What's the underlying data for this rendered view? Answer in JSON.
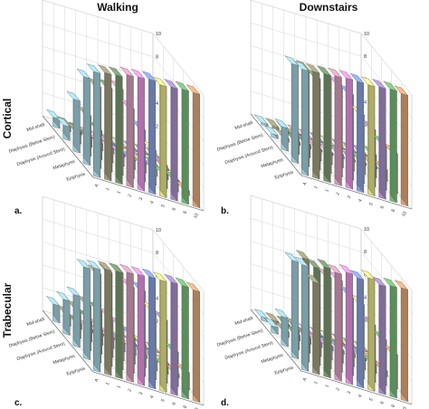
{
  "figure": {
    "col_titles": [
      "Walking",
      "Downstairs"
    ],
    "row_titles": [
      "Cortical",
      "Trabecular"
    ]
  },
  "chart_data": [
    {
      "type": "bar3d",
      "panel_label": "a.",
      "rows": [
        "Epiphysis",
        "Metaphysis",
        "Diaphysis (Around Stem)",
        "Diaphysis (Below Stem)",
        "Mid-shaft"
      ],
      "x_ticks": [
        "A",
        "1",
        "1",
        "2",
        "3",
        "4",
        "5",
        "6",
        "8",
        "10"
      ],
      "z_ticks": [
        "2",
        "4",
        "6",
        "8",
        "10"
      ],
      "zlim": [
        0,
        10
      ],
      "colors": [
        "#a8dce8",
        "#a9a682",
        "#7fa272",
        "#e4a6c6",
        "#f39df0",
        "#8fa9ec",
        "#f2f08a",
        "#b296d3",
        "#7bc77d",
        "#f0b07c"
      ],
      "values": [
        [
          9.0,
          9.2,
          9.3,
          9.6,
          9.7,
          9.8,
          9.6,
          9.7,
          9.8,
          9.8
        ],
        [
          7.5,
          7.0,
          7.2,
          7.4,
          6.0,
          4.5,
          3.0,
          2.0,
          1.0,
          0.4
        ],
        [
          4.5,
          3.5,
          2.5,
          1.5,
          1.0,
          0.8,
          0.8,
          0.6,
          0.4,
          0.2
        ],
        [
          1.2,
          1.0,
          0.8,
          0.6,
          0.5,
          0.3,
          0.3,
          0.2,
          0.1,
          0.1
        ],
        [
          0.8,
          0.5,
          0.3,
          0.2,
          0.1,
          0.1,
          0.1,
          0.1,
          0.1,
          0.1
        ]
      ]
    },
    {
      "type": "bar3d",
      "panel_label": "b.",
      "rows": [
        "Epiphysis",
        "Metaphysis",
        "Diaphysis (Around Stem)",
        "Diaphysis (Below Stem)",
        "Mid-shaft"
      ],
      "x_ticks": [
        "A",
        "1",
        "1",
        "2",
        "3",
        "4",
        "5",
        "6",
        "8",
        "10"
      ],
      "z_ticks": [
        "2",
        "4",
        "6",
        "8",
        "10"
      ],
      "zlim": [
        0,
        10
      ],
      "colors": [
        "#a8dce8",
        "#a9a682",
        "#7fa272",
        "#e4a6c6",
        "#f39df0",
        "#8fa9ec",
        "#f2f08a",
        "#b296d3",
        "#7bc77d",
        "#f0b07c"
      ],
      "values": [
        [
          9.2,
          9.3,
          9.4,
          9.5,
          9.6,
          9.6,
          9.6,
          9.7,
          9.8,
          9.7
        ],
        [
          8.6,
          8.5,
          8.0,
          8.5,
          8.0,
          7.5,
          6.0,
          5.0,
          4.0,
          3.5
        ],
        [
          2.0,
          1.5,
          1.2,
          1.0,
          1.0,
          1.2,
          1.5,
          1.8,
          2.0,
          1.0
        ],
        [
          0.3,
          0.3,
          0.3,
          0.3,
          0.2,
          0.2,
          0.2,
          0.2,
          0.2,
          0.2
        ],
        [
          0.2,
          0.2,
          0.2,
          0.2,
          0.1,
          0.1,
          0.1,
          0.1,
          0.1,
          0.1
        ]
      ]
    },
    {
      "type": "bar3d",
      "panel_label": "c.",
      "rows": [
        "Epiphysis",
        "Metaphysis",
        "Diaphysis (Around Stem)",
        "Diaphysis (Below Stem)",
        "Mid-shaft"
      ],
      "x_ticks": [
        "A",
        "1",
        "1",
        "2",
        "3",
        "4",
        "5",
        "6",
        "8",
        "10"
      ],
      "z_ticks": [
        "2",
        "4",
        "6",
        "8",
        "10"
      ],
      "zlim": [
        0,
        10
      ],
      "colors": [
        "#a8dce8",
        "#a9a682",
        "#7fa272",
        "#e4a6c6",
        "#f39df0",
        "#8fa9ec",
        "#f2f08a",
        "#b296d3",
        "#7bc77d",
        "#f0b07c"
      ],
      "values": [
        [
          9.0,
          9.2,
          9.3,
          9.5,
          9.6,
          9.7,
          9.7,
          9.8,
          9.8,
          9.7
        ],
        [
          8.0,
          7.8,
          8.2,
          8.5,
          7.5,
          7.5,
          6.0,
          5.5,
          3.0,
          1.5
        ],
        [
          4.5,
          4.0,
          3.8,
          3.5,
          3.0,
          2.5,
          2.0,
          1.0,
          0.6,
          0.3
        ],
        [
          3.0,
          2.5,
          2.0,
          1.5,
          1.0,
          0.8,
          0.5,
          0.3,
          0.2,
          0.1
        ],
        [
          1.5,
          1.0,
          0.5,
          0.3,
          0.2,
          0.1,
          0.1,
          0.1,
          0.1,
          0.1
        ]
      ]
    },
    {
      "type": "bar3d",
      "panel_label": "d.",
      "rows": [
        "Epiphysis",
        "Metaphysis",
        "Diaphysis (Around Stem)",
        "Diaphysis (Below Stem)",
        "Mid-shaft"
      ],
      "x_ticks": [
        "A",
        "1",
        "1",
        "2",
        "3",
        "4",
        "5",
        "6",
        "8",
        "10"
      ],
      "z_ticks": [
        "2",
        "4",
        "6",
        "8",
        "10"
      ],
      "zlim": [
        0,
        10
      ],
      "colors": [
        "#a8dce8",
        "#a9a682",
        "#7fa272",
        "#e4a6c6",
        "#f39df0",
        "#8fa9ec",
        "#f2f08a",
        "#b296d3",
        "#7bc77d",
        "#f0b07c"
      ],
      "values": [
        [
          9.2,
          8.0,
          9.6,
          9.4,
          9.7,
          9.5,
          9.8,
          9.5,
          9.7,
          9.8
        ],
        [
          8.5,
          9.0,
          8.5,
          8.0,
          8.0,
          7.0,
          6.5,
          5.0,
          4.0,
          3.0
        ],
        [
          2.5,
          2.0,
          1.5,
          1.2,
          1.0,
          1.2,
          1.5,
          1.0,
          0.8,
          0.5
        ],
        [
          0.6,
          0.5,
          0.5,
          0.5,
          0.5,
          0.4,
          0.3,
          0.3,
          0.2,
          0.2
        ],
        [
          0.3,
          0.3,
          0.3,
          0.2,
          0.2,
          0.2,
          0.2,
          0.2,
          0.1,
          0.1
        ]
      ]
    }
  ]
}
